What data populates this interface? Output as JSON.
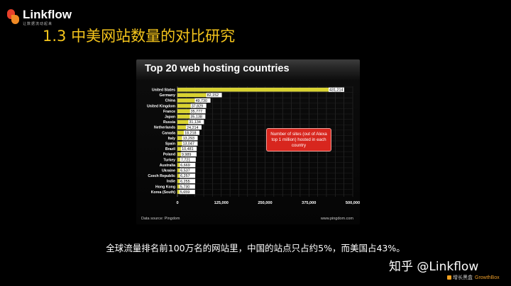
{
  "logo": {
    "name": "Linkflow",
    "subtitle": "让数据流动起来",
    "icon": "linkflow-logo-icon"
  },
  "slide_title": "1.3 中美网站数量的对比研究",
  "panel": {
    "footer_left": "Data source: Pingdom",
    "footer_right": "www.pingdom.com",
    "callout": "Number of sites (out of Alexa top 1 million) hosted in each country"
  },
  "chart_data": {
    "type": "bar",
    "orientation": "horizontal",
    "title": "Top 20 web hosting countries",
    "categories": [
      "United States",
      "Germany",
      "China",
      "United Kingdom",
      "France",
      "Japan",
      "Russia",
      "Netherlands",
      "Canada",
      "Italy",
      "Spain",
      "Brazil",
      "Poland",
      "Turkey",
      "Australia",
      "Ukraine",
      "Czech Republic",
      "Indie",
      "Hong Kong",
      "Korea (South)"
    ],
    "values": [
      431214,
      82152,
      49730,
      37829,
      35777,
      35138,
      31134,
      24214,
      18218,
      13293,
      13047,
      10481,
      9989,
      7721,
      6669,
      6537,
      6257,
      6255,
      5730,
      5659
    ],
    "value_labels": [
      "431,214",
      "82,152",
      "49,730",
      "37,829",
      "35,777",
      "35,138",
      "31,134",
      "24,214",
      "18,218",
      "13,293",
      "13,047",
      "10,481",
      "9,989",
      "7,721",
      "6,669",
      "6,537",
      "6,257",
      "6,255",
      "5,730",
      "5,659"
    ],
    "xticks": [
      0,
      125000,
      250000,
      375000,
      500000
    ],
    "xtick_labels": [
      "0",
      "125,000",
      "250,000",
      "375,000",
      "500,000"
    ],
    "xlim": [
      0,
      500000
    ],
    "grid": true,
    "bar_color": "#d8d230",
    "xlabel": "",
    "ylabel": ""
  },
  "caption": "全球流量排名前100万名的网站里，中国的站点只占约5%，而美国占43%。",
  "watermark": {
    "zhihu": "知乎 @Linkflow",
    "brand_cn": "增长黑盒",
    "brand_en": "GrowthBox"
  },
  "colors": {
    "accent": "#f5c51c",
    "callout": "#d8261e"
  }
}
